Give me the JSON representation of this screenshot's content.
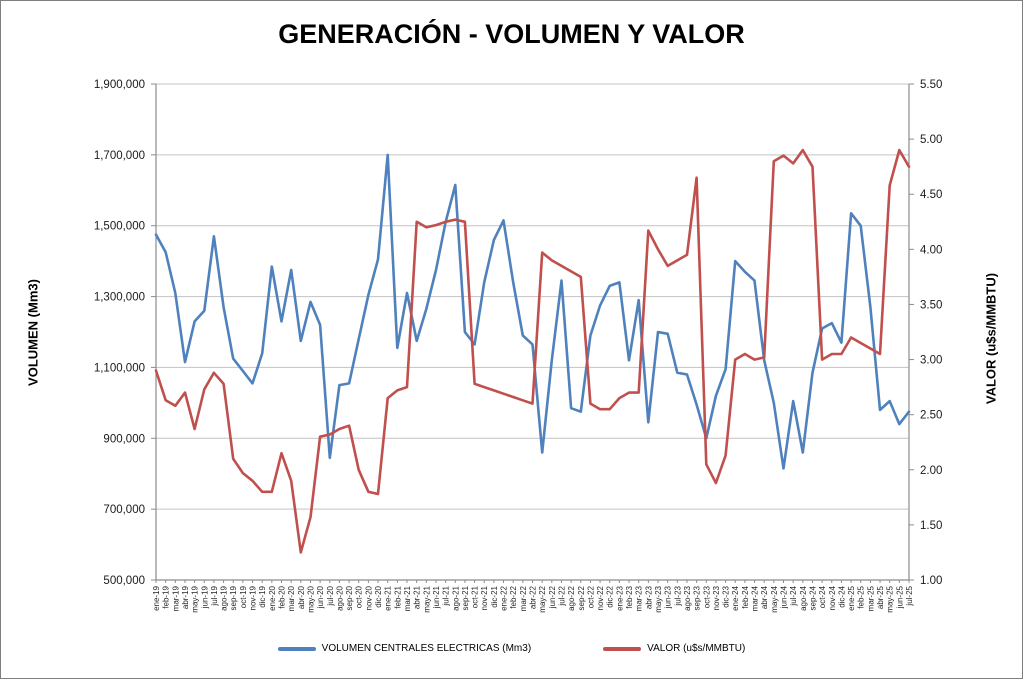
{
  "title": "GENERACIÓN - VOLUMEN Y VALOR",
  "colors": {
    "volumen_line": "#4F81BD",
    "valor_line": "#C0504D",
    "gridline": "#C3C3C3",
    "axis_line": "#8C8C8C",
    "tick_text": "#1a1a1a",
    "x_tick_text": "#262626",
    "background": "#FFFFFF",
    "border": "#7F7F7F"
  },
  "legend": {
    "volumen_label": "VOLUMEN CENTRALES ELECTRICAS (Mm3)",
    "valor_label": "VALOR (u$s/MMBTU)"
  },
  "chart_data": {
    "type": "line",
    "title": "GENERACIÓN - VOLUMEN Y VALOR",
    "grid": true,
    "legend_position": "bottom",
    "left_axis": {
      "title": "VOLUMEN (Mm3)",
      "min": 500000,
      "max": 1900000,
      "step": 200000
    },
    "right_axis": {
      "title": "VALOR (u$s/MMBTU)",
      "min": 1.0,
      "max": 5.5,
      "step": 0.5
    },
    "categories": [
      "ene-19",
      "feb-19",
      "mar-19",
      "abr-19",
      "may-19",
      "jun-19",
      "jul-19",
      "ago-19",
      "sep-19",
      "oct-19",
      "nov-19",
      "dic-19",
      "ene-20",
      "feb-20",
      "mar-20",
      "abr-20",
      "may-20",
      "jun-20",
      "jul-20",
      "ago-20",
      "sep-20",
      "oct-20",
      "nov-20",
      "dic-20",
      "ene-21",
      "feb-21",
      "mar-21",
      "abr-21",
      "may-21",
      "jun-21",
      "jul-21",
      "ago-21",
      "sep-21",
      "oct-21",
      "nov-21",
      "dic-21",
      "ene-22",
      "feb-22",
      "mar-22",
      "abr-22",
      "may-22",
      "jun-22",
      "jul-22",
      "ago-22",
      "sep-22",
      "oct-22",
      "nov-22",
      "dic-22",
      "ene-23",
      "feb-23",
      "mar-23",
      "abr-23",
      "may-23",
      "jun-23",
      "jul-23",
      "ago-23",
      "sep-23",
      "oct-23",
      "nov-23",
      "dic-23",
      "ene-24",
      "feb-24",
      "mar-24",
      "abr-24",
      "may-24",
      "jun-24",
      "jul-24",
      "ago-24",
      "sep-24",
      "oct-24",
      "nov-24",
      "dic-24",
      "ene-25",
      "feb-25",
      "mar-25",
      "abr-25",
      "may-25",
      "jun-25",
      "jul-25"
    ],
    "series": [
      {
        "name": "VOLUMEN CENTRALES ELECTRICAS (Mm3)",
        "axis": "left",
        "color": "#4F81BD",
        "values": [
          1475000,
          1425000,
          1310000,
          1115000,
          1230000,
          1260000,
          1470000,
          1270000,
          1125000,
          1090000,
          1055000,
          1140000,
          1385000,
          1230000,
          1375000,
          1175000,
          1285000,
          1220000,
          845000,
          1050000,
          1055000,
          1180000,
          1305000,
          1405000,
          1700000,
          1155000,
          1310000,
          1175000,
          1265000,
          1375000,
          1510000,
          1615000,
          1200000,
          1165000,
          1340000,
          1460000,
          1515000,
          1340000,
          1190000,
          1165000,
          860000,
          1120000,
          1345000,
          985000,
          975000,
          1190000,
          1275000,
          1330000,
          1340000,
          1120000,
          1290000,
          945000,
          1200000,
          1195000,
          1085000,
          1080000,
          995000,
          900000,
          1020000,
          1095000,
          1400000,
          1370000,
          1345000,
          1120000,
          1000000,
          815000,
          1005000,
          860000,
          1085000,
          1210000,
          1225000,
          1170000,
          1535000,
          1500000,
          1270000,
          980000,
          1005000,
          940000,
          975000
        ]
      },
      {
        "name": "VALOR (u$s/MMBTU)",
        "axis": "right",
        "color": "#C0504D",
        "values": [
          2.9,
          2.63,
          2.58,
          2.7,
          2.37,
          2.73,
          2.88,
          2.78,
          2.1,
          1.97,
          1.9,
          1.8,
          1.8,
          2.15,
          1.9,
          1.25,
          1.57,
          2.3,
          2.32,
          2.37,
          2.4,
          2.0,
          1.8,
          1.78,
          2.65,
          2.72,
          2.75,
          4.25,
          4.2,
          4.22,
          4.25,
          4.27,
          4.25,
          2.78,
          2.75,
          2.72,
          2.69,
          2.66,
          2.63,
          2.6,
          3.97,
          3.9,
          3.85,
          3.8,
          3.75,
          2.6,
          2.55,
          2.55,
          2.65,
          2.7,
          2.7,
          4.17,
          4.0,
          3.85,
          3.9,
          3.95,
          4.65,
          2.05,
          1.88,
          2.13,
          3.0,
          3.05,
          3.0,
          3.02,
          4.8,
          4.85,
          4.78,
          4.9,
          4.75,
          3.0,
          3.05,
          3.05,
          3.2,
          3.15,
          3.1,
          3.05,
          4.58,
          4.9,
          4.75
        ]
      }
    ]
  }
}
